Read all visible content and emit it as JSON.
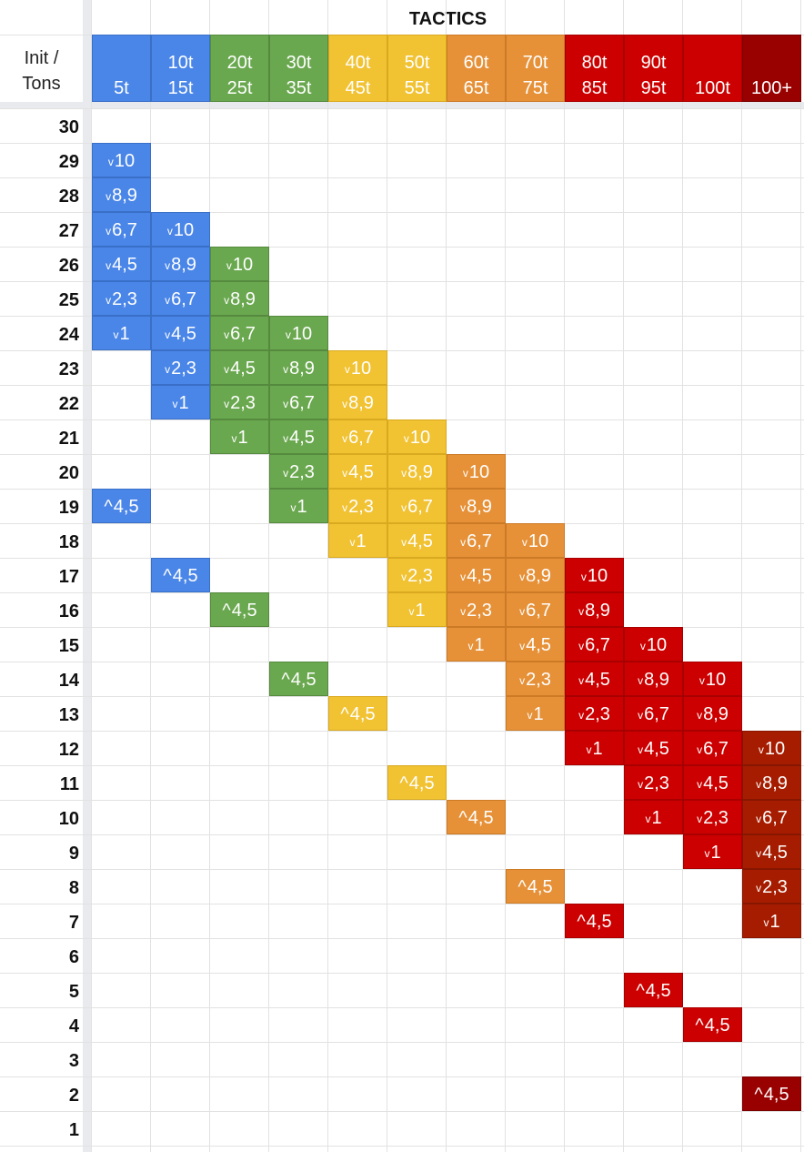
{
  "title": "TACTICS",
  "corner": {
    "line1": "Init /",
    "line2": "Tons"
  },
  "colors": {
    "blue": "#4a86e8",
    "green": "#6aa84f",
    "yellow": "#f1c232",
    "orange": "#e69138",
    "red": "#cc0000",
    "dark_red": "#990000",
    "dark_red_alt": "#a61c00"
  },
  "columns": [
    {
      "line1": "",
      "line2": "5t",
      "color": "blue"
    },
    {
      "line1": "10t",
      "line2": "15t",
      "color": "blue"
    },
    {
      "line1": "20t",
      "line2": "25t",
      "color": "green"
    },
    {
      "line1": "30t",
      "line2": "35t",
      "color": "green"
    },
    {
      "line1": "40t",
      "line2": "45t",
      "color": "yellow"
    },
    {
      "line1": "50t",
      "line2": "55t",
      "color": "yellow"
    },
    {
      "line1": "60t",
      "line2": "65t",
      "color": "orange"
    },
    {
      "line1": "70t",
      "line2": "75t",
      "color": "orange"
    },
    {
      "line1": "80t",
      "line2": "85t",
      "color": "red"
    },
    {
      "line1": "90t",
      "line2": "95t",
      "color": "red"
    },
    {
      "line1": "",
      "line2": "100t",
      "color": "red"
    },
    {
      "line1": "",
      "line2": "100+",
      "color": "dark_red"
    }
  ],
  "rows": [
    "30",
    "29",
    "28",
    "27",
    "26",
    "25",
    "24",
    "23",
    "22",
    "21",
    "20",
    "19",
    "18",
    "17",
    "16",
    "15",
    "14",
    "13",
    "12",
    "11",
    "10",
    "9",
    "8",
    "7",
    "6",
    "5",
    "4",
    "3",
    "2",
    "1"
  ],
  "cells": [
    {
      "row": "29",
      "col": 0,
      "marker": "v",
      "text": "10"
    },
    {
      "row": "28",
      "col": 0,
      "marker": "v",
      "text": "8,9"
    },
    {
      "row": "27",
      "col": 0,
      "marker": "v",
      "text": "6,7"
    },
    {
      "row": "27",
      "col": 1,
      "marker": "v",
      "text": "10"
    },
    {
      "row": "26",
      "col": 0,
      "marker": "v",
      "text": "4,5"
    },
    {
      "row": "26",
      "col": 1,
      "marker": "v",
      "text": "8,9"
    },
    {
      "row": "26",
      "col": 2,
      "marker": "v",
      "text": "10"
    },
    {
      "row": "25",
      "col": 0,
      "marker": "v",
      "text": "2,3"
    },
    {
      "row": "25",
      "col": 1,
      "marker": "v",
      "text": "6,7"
    },
    {
      "row": "25",
      "col": 2,
      "marker": "v",
      "text": "8,9"
    },
    {
      "row": "24",
      "col": 0,
      "marker": "v",
      "text": "1"
    },
    {
      "row": "24",
      "col": 1,
      "marker": "v",
      "text": "4,5"
    },
    {
      "row": "24",
      "col": 2,
      "marker": "v",
      "text": "6,7"
    },
    {
      "row": "24",
      "col": 3,
      "marker": "v",
      "text": "10"
    },
    {
      "row": "23",
      "col": 1,
      "marker": "v",
      "text": "2,3"
    },
    {
      "row": "23",
      "col": 2,
      "marker": "v",
      "text": "4,5"
    },
    {
      "row": "23",
      "col": 3,
      "marker": "v",
      "text": "8,9"
    },
    {
      "row": "23",
      "col": 4,
      "marker": "v",
      "text": "10"
    },
    {
      "row": "22",
      "col": 1,
      "marker": "v",
      "text": "1"
    },
    {
      "row": "22",
      "col": 2,
      "marker": "v",
      "text": "2,3"
    },
    {
      "row": "22",
      "col": 3,
      "marker": "v",
      "text": "6,7"
    },
    {
      "row": "22",
      "col": 4,
      "marker": "v",
      "text": "8,9"
    },
    {
      "row": "21",
      "col": 2,
      "marker": "v",
      "text": "1"
    },
    {
      "row": "21",
      "col": 3,
      "marker": "v",
      "text": "4,5"
    },
    {
      "row": "21",
      "col": 4,
      "marker": "v",
      "text": "6,7"
    },
    {
      "row": "21",
      "col": 5,
      "marker": "v",
      "text": "10"
    },
    {
      "row": "20",
      "col": 3,
      "marker": "v",
      "text": "2,3"
    },
    {
      "row": "20",
      "col": 4,
      "marker": "v",
      "text": "4,5"
    },
    {
      "row": "20",
      "col": 5,
      "marker": "v",
      "text": "8,9"
    },
    {
      "row": "20",
      "col": 6,
      "marker": "v",
      "text": "10"
    },
    {
      "row": "19",
      "col": 0,
      "marker": "^",
      "text": "4,5"
    },
    {
      "row": "19",
      "col": 3,
      "marker": "v",
      "text": "1"
    },
    {
      "row": "19",
      "col": 4,
      "marker": "v",
      "text": "2,3"
    },
    {
      "row": "19",
      "col": 5,
      "marker": "v",
      "text": "6,7"
    },
    {
      "row": "19",
      "col": 6,
      "marker": "v",
      "text": "8,9"
    },
    {
      "row": "18",
      "col": 4,
      "marker": "v",
      "text": "1"
    },
    {
      "row": "18",
      "col": 5,
      "marker": "v",
      "text": "4,5"
    },
    {
      "row": "18",
      "col": 6,
      "marker": "v",
      "text": "6,7"
    },
    {
      "row": "18",
      "col": 7,
      "marker": "v",
      "text": "10"
    },
    {
      "row": "17",
      "col": 1,
      "marker": "^",
      "text": "4,5"
    },
    {
      "row": "17",
      "col": 5,
      "marker": "v",
      "text": "2,3"
    },
    {
      "row": "17",
      "col": 6,
      "marker": "v",
      "text": "4,5"
    },
    {
      "row": "17",
      "col": 7,
      "marker": "v",
      "text": "8,9"
    },
    {
      "row": "17",
      "col": 8,
      "marker": "v",
      "text": "10"
    },
    {
      "row": "16",
      "col": 2,
      "marker": "^",
      "text": "4,5"
    },
    {
      "row": "16",
      "col": 5,
      "marker": "v",
      "text": "1"
    },
    {
      "row": "16",
      "col": 6,
      "marker": "v",
      "text": "2,3"
    },
    {
      "row": "16",
      "col": 7,
      "marker": "v",
      "text": "6,7"
    },
    {
      "row": "16",
      "col": 8,
      "marker": "v",
      "text": "8,9"
    },
    {
      "row": "15",
      "col": 6,
      "marker": "v",
      "text": "1"
    },
    {
      "row": "15",
      "col": 7,
      "marker": "v",
      "text": "4,5"
    },
    {
      "row": "15",
      "col": 8,
      "marker": "v",
      "text": "6,7"
    },
    {
      "row": "15",
      "col": 9,
      "marker": "v",
      "text": "10"
    },
    {
      "row": "14",
      "col": 3,
      "marker": "^",
      "text": "4,5"
    },
    {
      "row": "14",
      "col": 7,
      "marker": "v",
      "text": "2,3"
    },
    {
      "row": "14",
      "col": 8,
      "marker": "v",
      "text": "4,5"
    },
    {
      "row": "14",
      "col": 9,
      "marker": "v",
      "text": "8,9"
    },
    {
      "row": "14",
      "col": 10,
      "marker": "v",
      "text": "10"
    },
    {
      "row": "13",
      "col": 4,
      "marker": "^",
      "text": "4,5"
    },
    {
      "row": "13",
      "col": 7,
      "marker": "v",
      "text": "1"
    },
    {
      "row": "13",
      "col": 8,
      "marker": "v",
      "text": "2,3"
    },
    {
      "row": "13",
      "col": 9,
      "marker": "v",
      "text": "6,7"
    },
    {
      "row": "13",
      "col": 10,
      "marker": "v",
      "text": "8,9"
    },
    {
      "row": "12",
      "col": 8,
      "marker": "v",
      "text": "1"
    },
    {
      "row": "12",
      "col": 9,
      "marker": "v",
      "text": "4,5"
    },
    {
      "row": "12",
      "col": 10,
      "marker": "v",
      "text": "6,7"
    },
    {
      "row": "12",
      "col": 11,
      "marker": "v",
      "text": "10",
      "color": "dark_red_alt"
    },
    {
      "row": "11",
      "col": 5,
      "marker": "^",
      "text": "4,5"
    },
    {
      "row": "11",
      "col": 9,
      "marker": "v",
      "text": "2,3"
    },
    {
      "row": "11",
      "col": 10,
      "marker": "v",
      "text": "4,5"
    },
    {
      "row": "11",
      "col": 11,
      "marker": "v",
      "text": "8,9",
      "color": "dark_red_alt"
    },
    {
      "row": "10",
      "col": 6,
      "marker": "^",
      "text": "4,5"
    },
    {
      "row": "10",
      "col": 9,
      "marker": "v",
      "text": "1"
    },
    {
      "row": "10",
      "col": 10,
      "marker": "v",
      "text": "2,3"
    },
    {
      "row": "10",
      "col": 11,
      "marker": "v",
      "text": "6,7",
      "color": "dark_red_alt"
    },
    {
      "row": "9",
      "col": 10,
      "marker": "v",
      "text": "1"
    },
    {
      "row": "9",
      "col": 11,
      "marker": "v",
      "text": "4,5",
      "color": "dark_red_alt"
    },
    {
      "row": "8",
      "col": 7,
      "marker": "^",
      "text": "4,5"
    },
    {
      "row": "8",
      "col": 11,
      "marker": "v",
      "text": "2,3",
      "color": "dark_red_alt"
    },
    {
      "row": "7",
      "col": 8,
      "marker": "^",
      "text": "4,5"
    },
    {
      "row": "7",
      "col": 11,
      "marker": "v",
      "text": "1",
      "color": "dark_red_alt"
    },
    {
      "row": "5",
      "col": 9,
      "marker": "^",
      "text": "4,5"
    },
    {
      "row": "4",
      "col": 10,
      "marker": "^",
      "text": "4,5"
    },
    {
      "row": "2",
      "col": 11,
      "marker": "^",
      "text": "4,5"
    }
  ]
}
